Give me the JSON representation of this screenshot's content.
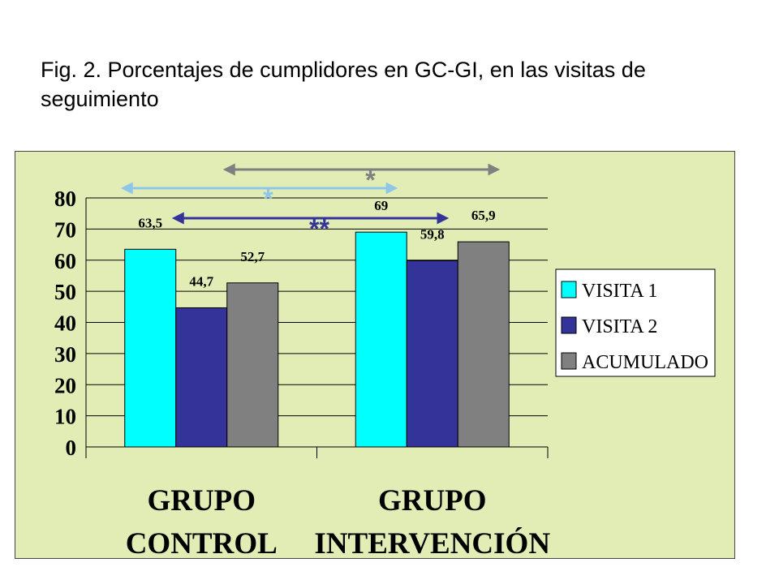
{
  "title": "Fig. 2. Porcentajes de cumplidores en GC-GI, en las visitas de seguimiento",
  "chart_data": {
    "type": "bar",
    "categories": [
      "GRUPO CONTROL",
      "GRUPO INTERVENCIÓN"
    ],
    "category_lines": [
      [
        "GRUPO",
        "CONTROL"
      ],
      [
        "GRUPO",
        "INTERVENCIÓN"
      ]
    ],
    "series": [
      {
        "name": "VISITA 1",
        "values": [
          63.5,
          69
        ],
        "labels": [
          "63,5",
          "69"
        ],
        "color": "#00ffff"
      },
      {
        "name": "VISITA 2",
        "values": [
          44.7,
          59.8
        ],
        "labels": [
          "44,7",
          "59,8"
        ],
        "color": "#333399"
      },
      {
        "name": "ACUMULADO",
        "values": [
          52.7,
          65.9
        ],
        "labels": [
          "52,7",
          "65,9"
        ],
        "color": "#808080"
      }
    ],
    "ylim": [
      0,
      80
    ],
    "yticks": [
      0,
      10,
      20,
      30,
      40,
      50,
      60,
      70,
      80
    ],
    "grid": true,
    "legend_position": "right",
    "background": "#e2edb6",
    "significance": [
      {
        "label": "*",
        "from": {
          "category": 0,
          "series": 0
        },
        "to": {
          "category": 1,
          "series": 0
        },
        "color": "#8ec6e8"
      },
      {
        "label": "**",
        "from": {
          "category": 0,
          "series": 1
        },
        "to": {
          "category": 1,
          "series": 1
        },
        "color": "#333399"
      },
      {
        "label": "*",
        "from": {
          "category": 0,
          "series": 2
        },
        "to": {
          "category": 1,
          "series": 2
        },
        "color": "#808080"
      }
    ]
  }
}
